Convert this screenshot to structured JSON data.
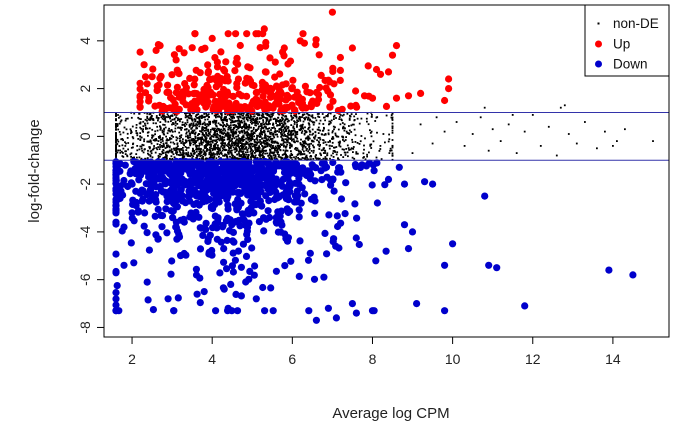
{
  "chart_data": {
    "type": "scatter",
    "title": "",
    "xlabel": "Average log CPM",
    "ylabel": "log-fold-change",
    "xlim": [
      1.3,
      15.4
    ],
    "ylim": [
      -8.4,
      5.5
    ],
    "x_ticks": [
      2,
      4,
      6,
      8,
      10,
      12,
      14
    ],
    "y_ticks": [
      -8,
      -6,
      -4,
      -2,
      0,
      2,
      4
    ],
    "grid": false,
    "legend_position": "top-right",
    "threshold_lines": [
      1,
      -1
    ],
    "threshold_color": "#3333aa",
    "series": [
      {
        "name": "non-DE",
        "color": "#000000",
        "marker": "small-dot",
        "generation": {
          "n": 2600,
          "x_center": 4.6,
          "x_spread": 1.6,
          "x_min": 1.6,
          "x_max": 8.5,
          "y_range": [
            -0.99,
            0.99
          ]
        },
        "points": [
          [
            9.2,
            0.5
          ],
          [
            9.5,
            -0.3
          ],
          [
            9.8,
            0.2
          ],
          [
            10.1,
            0.6
          ],
          [
            10.3,
            -0.4
          ],
          [
            10.5,
            0.1
          ],
          [
            10.7,
            0.8
          ],
          [
            10.9,
            -0.6
          ],
          [
            11.0,
            0.3
          ],
          [
            11.2,
            -0.2
          ],
          [
            11.4,
            0.5
          ],
          [
            11.6,
            -0.7
          ],
          [
            11.8,
            0.2
          ],
          [
            12.0,
            0.9
          ],
          [
            12.2,
            -0.4
          ],
          [
            12.4,
            0.4
          ],
          [
            12.6,
            -0.8
          ],
          [
            12.8,
            1.3
          ],
          [
            12.9,
            0.1
          ],
          [
            13.1,
            -0.3
          ],
          [
            13.3,
            0.6
          ],
          [
            13.6,
            -0.5
          ],
          [
            13.8,
            0.2
          ],
          [
            14.0,
            -0.4
          ],
          [
            14.1,
            -0.2
          ],
          [
            14.3,
            0.3
          ],
          [
            15.0,
            -0.2
          ],
          [
            9.0,
            -0.7
          ],
          [
            9.6,
            0.8
          ],
          [
            10.8,
            1.2
          ],
          [
            11.5,
            0.9
          ],
          [
            12.7,
            1.2
          ]
        ]
      },
      {
        "name": "Up",
        "color": "#ff0000",
        "marker": "filled-circle",
        "generation": {
          "n": 320,
          "x_center": 4.7,
          "x_spread": 1.3,
          "x_min": 2.2,
          "x_max": 8.6,
          "y_min": 1.05,
          "y_decay": 0.9,
          "y_max": 4.3
        },
        "points": [
          [
            7.0,
            5.2
          ],
          [
            5.3,
            4.5
          ],
          [
            4.4,
            4.3
          ],
          [
            6.2,
            4.0
          ],
          [
            6.3,
            3.9
          ],
          [
            2.7,
            3.8
          ],
          [
            2.6,
            3.6
          ],
          [
            3.3,
            3.5
          ],
          [
            4.0,
            4.1
          ],
          [
            5.8,
            3.7
          ],
          [
            7.5,
            3.7
          ],
          [
            8.6,
            3.8
          ],
          [
            8.5,
            3.4
          ],
          [
            8.1,
            2.8
          ],
          [
            8.2,
            2.6
          ],
          [
            8.4,
            2.7
          ],
          [
            8.6,
            1.6
          ],
          [
            9.2,
            1.8
          ],
          [
            9.9,
            2.4
          ],
          [
            9.9,
            2.0
          ],
          [
            9.8,
            1.5
          ],
          [
            8.9,
            1.7
          ],
          [
            2.3,
            3.0
          ],
          [
            2.5,
            2.5
          ],
          [
            3.1,
            3.2
          ],
          [
            7.8,
            1.7
          ],
          [
            8.0,
            1.6
          ],
          [
            7.2,
            3.3
          ]
        ]
      },
      {
        "name": "Down",
        "color": "#0000cc",
        "marker": "filled-circle",
        "generation": {
          "n": 950,
          "x_center": 4.2,
          "x_spread": 1.5,
          "x_min": 1.6,
          "x_max": 8.8,
          "y_max": -1.05,
          "y_decay": 1.3,
          "y_min": -7.3
        },
        "points": [
          [
            1.7,
            -2.6
          ],
          [
            1.8,
            -3.8
          ],
          [
            1.8,
            -5.4
          ],
          [
            2.0,
            -3.2
          ],
          [
            2.1,
            -2.9
          ],
          [
            6.6,
            -7.7
          ],
          [
            7.1,
            -7.6
          ],
          [
            7.6,
            -7.4
          ],
          [
            7.5,
            -7.0
          ],
          [
            6.9,
            -7.2
          ],
          [
            8.0,
            -7.3
          ],
          [
            9.8,
            -7.3
          ],
          [
            9.1,
            -7.0
          ],
          [
            10.0,
            -4.5
          ],
          [
            9.8,
            -5.4
          ],
          [
            10.9,
            -5.4
          ],
          [
            11.1,
            -5.5
          ],
          [
            10.8,
            -2.5
          ],
          [
            11.8,
            -7.1
          ],
          [
            13.9,
            -5.6
          ],
          [
            14.5,
            -5.8
          ],
          [
            9.3,
            -1.9
          ],
          [
            9.5,
            -2.0
          ],
          [
            8.8,
            -3.7
          ],
          [
            8.9,
            -4.7
          ],
          [
            9.0,
            -4.0
          ],
          [
            8.4,
            -1.8
          ],
          [
            2.9,
            -6.8
          ],
          [
            4.4,
            -7.2
          ],
          [
            3.8,
            -6.5
          ],
          [
            5.1,
            -6.8
          ],
          [
            4.3,
            -6.4
          ]
        ]
      }
    ]
  }
}
